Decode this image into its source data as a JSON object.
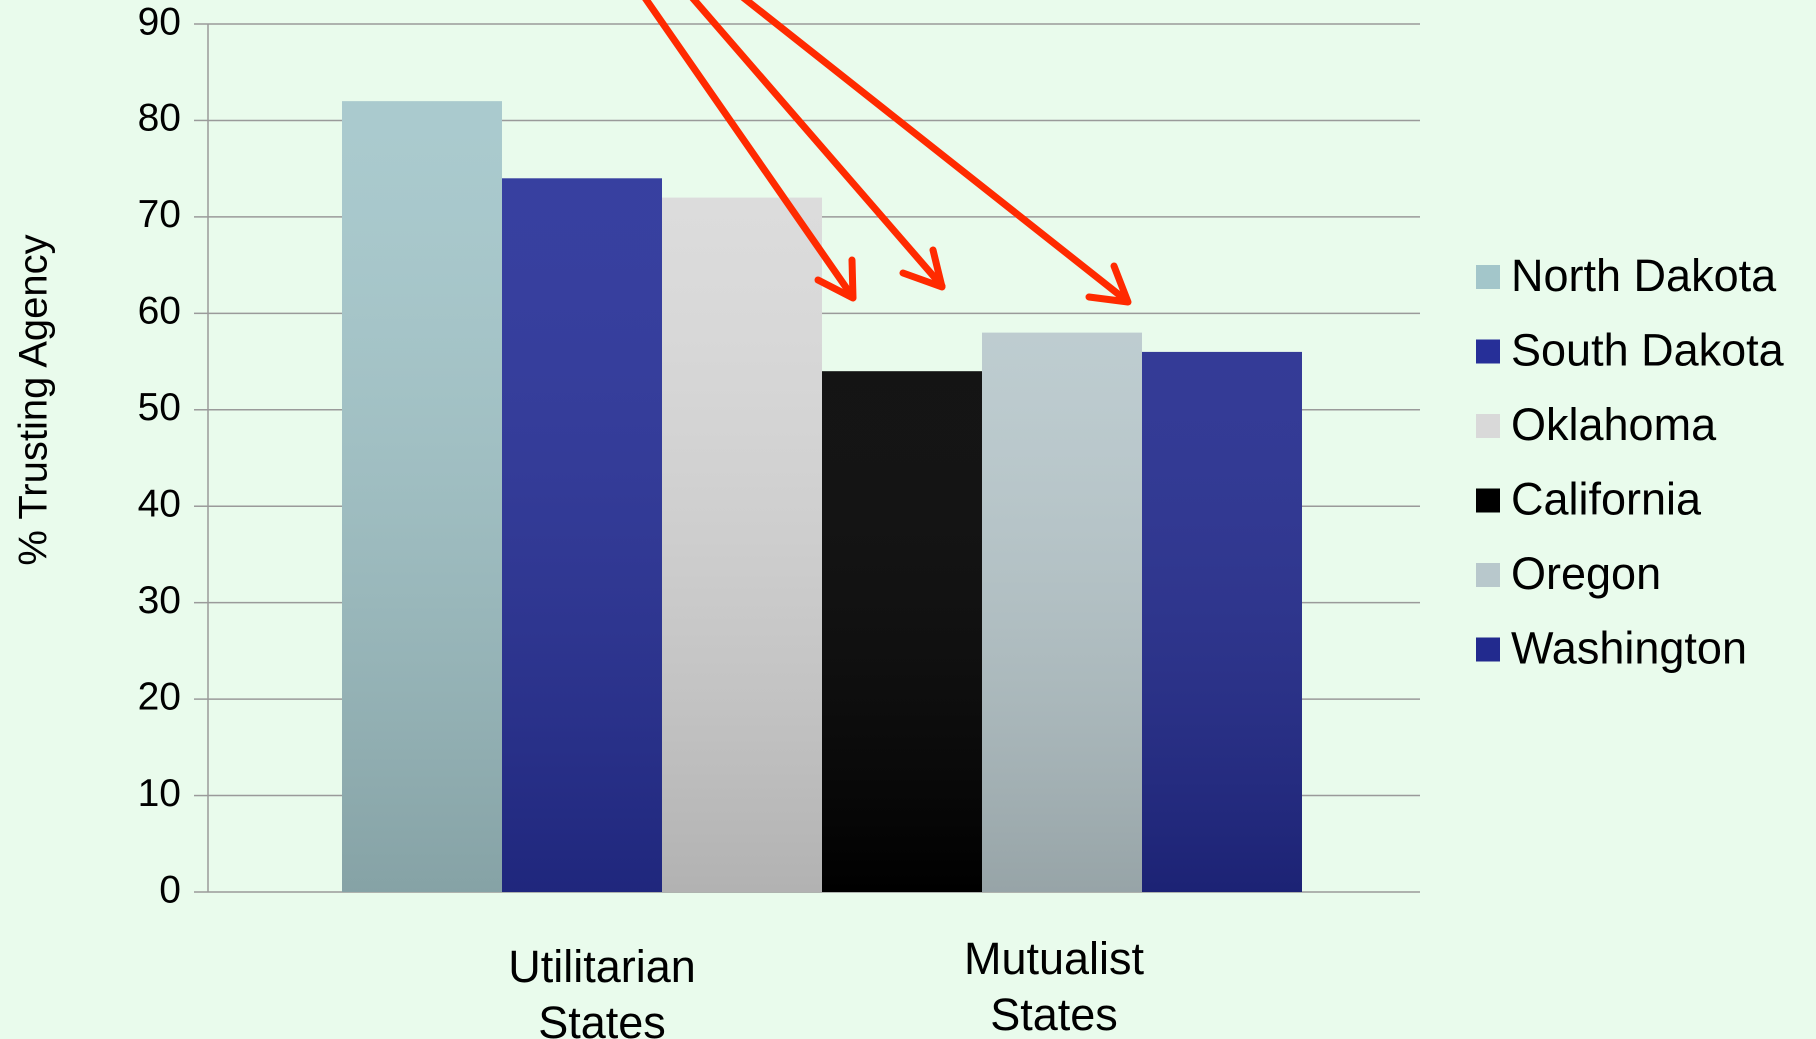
{
  "chart_data": {
    "type": "bar",
    "y_label": "% Trusting Agency",
    "categories": [
      "Utilitarian States",
      "Mutualist States"
    ],
    "series": [
      {
        "name": "North Dakota",
        "color": "#a3c6ca",
        "values": [
          82,
          null
        ]
      },
      {
        "name": "South Dakota",
        "color": "#262f98",
        "values": [
          74,
          null
        ]
      },
      {
        "name": "Oklahoma",
        "color": "#d9d9d9",
        "values": [
          72,
          null
        ]
      },
      {
        "name": "California",
        "color": "#000000",
        "values": [
          null,
          54
        ]
      },
      {
        "name": "Oregon",
        "color": "#b8c8cc",
        "values": [
          null,
          58
        ]
      },
      {
        "name": "Washington",
        "color": "#222a8e",
        "values": [
          null,
          56
        ]
      }
    ],
    "ylim": [
      0,
      90
    ],
    "yticks": [
      0,
      10,
      20,
      30,
      40,
      50,
      60,
      70,
      80,
      90
    ],
    "grid": true,
    "legend": "right"
  }
}
